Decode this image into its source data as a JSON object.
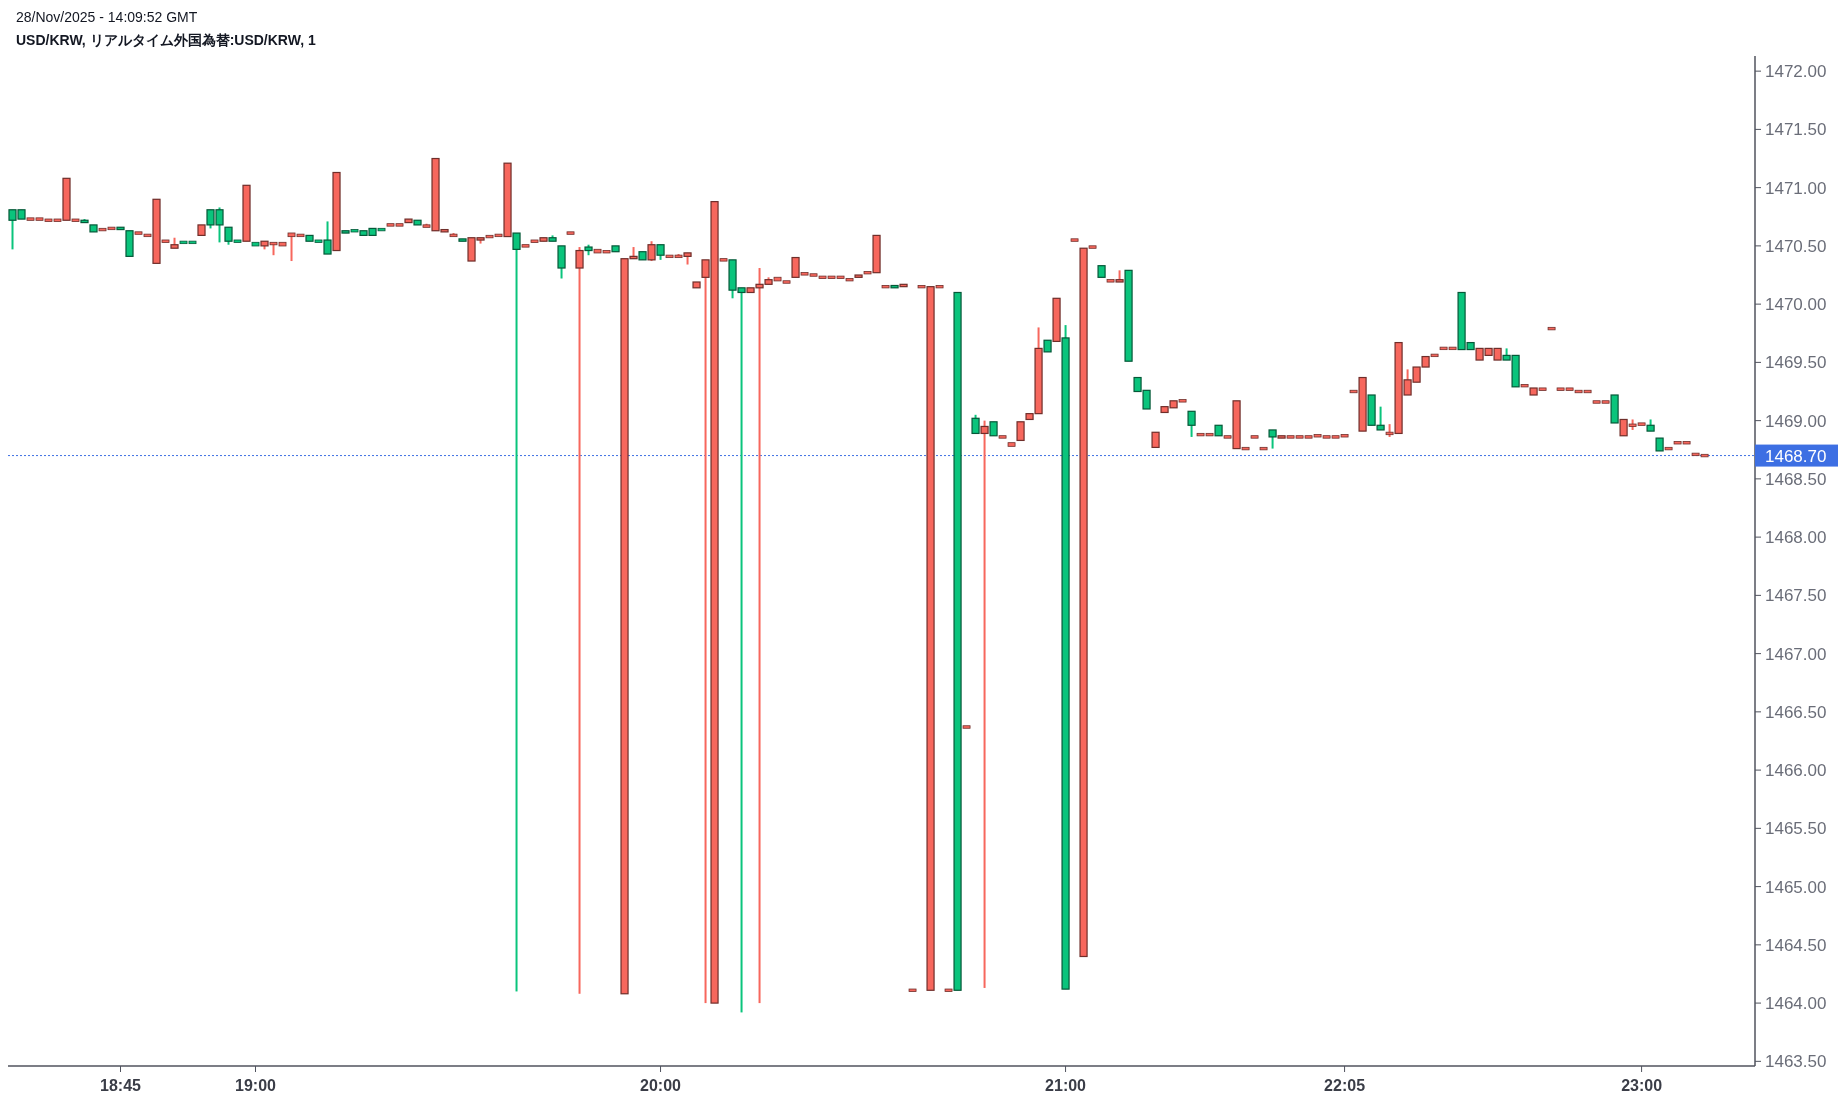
{
  "chart_data": {
    "type": "candlestick",
    "title": "USD/KRW, リアルタイム外国為替:USD/KRW, 1",
    "annotations": [
      "28/Nov/2025 - 14:09:52 GMT"
    ],
    "categories": [
      null,
      null,
      null,
      null,
      null,
      null,
      null,
      null,
      null,
      null,
      null,
      null,
      "18:45",
      null,
      null,
      null,
      null,
      null,
      null,
      null,
      null,
      null,
      null,
      null,
      null,
      null,
      null,
      "19:00",
      null,
      null,
      null,
      null,
      null,
      null,
      null,
      null,
      null,
      null,
      null,
      null,
      null,
      null,
      null,
      null,
      null,
      null,
      null,
      null,
      null,
      null,
      null,
      null,
      null,
      null,
      null,
      null,
      null,
      null,
      null,
      null,
      null,
      null,
      null,
      null,
      null,
      null,
      null,
      null,
      null,
      null,
      null,
      null,
      "20:00",
      null,
      null,
      null,
      null,
      null,
      null,
      null,
      null,
      null,
      null,
      null,
      null,
      null,
      null,
      null,
      null,
      null,
      null,
      null,
      null,
      null,
      null,
      null,
      null,
      null,
      null,
      null,
      null,
      null,
      null,
      null,
      null,
      null,
      null,
      null,
      null,
      null,
      null,
      null,
      null,
      null,
      null,
      null,
      null,
      "21:00",
      null,
      null,
      null,
      null,
      null,
      null,
      null,
      null,
      null,
      null,
      null,
      null,
      null,
      null,
      null,
      null,
      null,
      null,
      null,
      null,
      null,
      null,
      null,
      null,
      null,
      null,
      null,
      null,
      null,
      null,
      "22:05",
      null,
      null,
      null,
      null,
      null,
      null,
      null,
      null,
      null,
      null,
      null,
      null,
      null,
      null,
      null,
      null,
      null,
      null,
      null,
      null,
      null,
      null,
      null,
      null,
      null,
      null,
      null,
      null,
      null,
      null,
      null,
      null,
      "23:00",
      null,
      null,
      null,
      null,
      null,
      null,
      null
    ],
    "ohlc": [
      [
        1470.81,
        1470.81,
        1470.47,
        1470.72
      ],
      [
        1470.81,
        1470.81,
        1470.73,
        1470.73
      ],
      [
        1470.73,
        1470.73,
        1470.73,
        1470.73
      ],
      [
        1470.73,
        1470.73,
        1470.73,
        1470.73
      ],
      [
        1470.72,
        1470.72,
        1470.72,
        1470.72
      ],
      [
        1470.72,
        1470.72,
        1470.72,
        1470.72
      ],
      [
        1470.72,
        1471.08,
        1470.72,
        1471.08
      ],
      [
        1470.72,
        1470.72,
        1470.72,
        1470.72
      ],
      [
        1470.72,
        1470.73,
        1470.7,
        1470.7
      ],
      [
        1470.68,
        1470.68,
        1470.62,
        1470.62
      ],
      [
        1470.64,
        1470.64,
        1470.64,
        1470.64
      ],
      [
        1470.65,
        1470.65,
        1470.65,
        1470.65
      ],
      [
        1470.66,
        1470.66,
        1470.64,
        1470.64
      ],
      [
        1470.63,
        1470.63,
        1470.41,
        1470.41
      ],
      [
        1470.61,
        1470.61,
        1470.61,
        1470.61
      ],
      [
        1470.59,
        1470.59,
        1470.59,
        1470.59
      ],
      [
        1470.35,
        1470.9,
        1470.35,
        1470.9
      ],
      [
        1470.54,
        1470.54,
        1470.54,
        1470.54
      ],
      [
        1470.48,
        1470.57,
        1470.48,
        1470.51
      ],
      [
        1470.53,
        1470.53,
        1470.53,
        1470.53
      ],
      [
        1470.53,
        1470.53,
        1470.53,
        1470.53
      ],
      [
        1470.59,
        1470.68,
        1470.59,
        1470.68
      ],
      [
        1470.81,
        1470.81,
        1470.65,
        1470.68
      ],
      [
        1470.81,
        1470.83,
        1470.53,
        1470.68
      ],
      [
        1470.66,
        1470.66,
        1470.51,
        1470.54
      ],
      [
        1470.54,
        1470.54,
        1470.54,
        1470.54
      ],
      [
        1470.54,
        1471.02,
        1470.54,
        1471.02
      ],
      [
        1470.52,
        1470.52,
        1470.51,
        1470.51
      ],
      [
        1470.5,
        1470.54,
        1470.47,
        1470.54
      ],
      [
        1470.52,
        1470.52,
        1470.42,
        1470.52
      ],
      [
        1470.51,
        1470.52,
        1470.51,
        1470.52
      ],
      [
        1470.59,
        1470.6,
        1470.37,
        1470.6
      ],
      [
        1470.59,
        1470.59,
        1470.59,
        1470.59
      ],
      [
        1470.59,
        1470.59,
        1470.54,
        1470.54
      ],
      [
        1470.54,
        1470.54,
        1470.54,
        1470.54
      ],
      [
        1470.55,
        1470.71,
        1470.43,
        1470.43
      ],
      [
        1470.46,
        1471.13,
        1470.46,
        1471.13
      ],
      [
        1470.63,
        1470.63,
        1470.61,
        1470.61
      ],
      [
        1470.63,
        1470.64,
        1470.62,
        1470.63
      ],
      [
        1470.63,
        1470.63,
        1470.59,
        1470.59
      ],
      [
        1470.65,
        1470.65,
        1470.59,
        1470.59
      ],
      [
        1470.64,
        1470.64,
        1470.64,
        1470.64
      ],
      [
        1470.68,
        1470.68,
        1470.68,
        1470.68
      ],
      [
        1470.68,
        1470.68,
        1470.68,
        1470.68
      ],
      [
        1470.7,
        1470.73,
        1470.7,
        1470.73
      ],
      [
        1470.72,
        1470.72,
        1470.68,
        1470.68
      ],
      [
        1470.67,
        1470.69,
        1470.67,
        1470.67
      ],
      [
        1470.63,
        1471.25,
        1470.63,
        1471.25
      ],
      [
        1470.62,
        1470.64,
        1470.62,
        1470.64
      ],
      [
        1470.59,
        1470.61,
        1470.59,
        1470.59
      ],
      [
        1470.56,
        1470.56,
        1470.54,
        1470.54
      ],
      [
        1470.37,
        1470.57,
        1470.37,
        1470.57
      ],
      [
        1470.55,
        1470.57,
        1470.52,
        1470.57
      ],
      [
        1470.58,
        1470.58,
        1470.58,
        1470.58
      ],
      [
        1470.59,
        1470.59,
        1470.59,
        1470.59
      ],
      [
        1470.58,
        1471.21,
        1470.58,
        1471.21
      ],
      [
        1470.61,
        1470.61,
        1464.1,
        1470.47
      ],
      [
        1470.5,
        1470.5,
        1470.5,
        1470.5
      ],
      [
        1470.54,
        1470.54,
        1470.54,
        1470.54
      ],
      [
        1470.54,
        1470.57,
        1470.54,
        1470.57
      ],
      [
        1470.57,
        1470.59,
        1470.54,
        1470.54
      ],
      [
        1470.5,
        1470.5,
        1470.22,
        1470.31
      ],
      [
        1470.61,
        1470.61,
        1470.61,
        1470.61
      ],
      [
        1470.31,
        1470.49,
        1464.08,
        1470.46
      ],
      [
        1470.49,
        1470.51,
        1470.42,
        1470.46
      ],
      [
        1470.45,
        1470.46,
        1470.45,
        1470.46
      ],
      [
        1470.45,
        1470.45,
        1470.45,
        1470.45
      ],
      [
        1470.5,
        1470.5,
        1470.45,
        1470.45
      ],
      [
        1464.08,
        1470.39,
        1464.08,
        1470.39
      ],
      [
        1470.39,
        1470.49,
        1470.39,
        1470.41
      ],
      [
        1470.45,
        1470.45,
        1470.38,
        1470.38
      ],
      [
        1470.38,
        1470.54,
        1470.37,
        1470.51
      ],
      [
        1470.51,
        1470.51,
        1470.38,
        1470.42
      ],
      [
        1470.41,
        1470.41,
        1470.41,
        1470.41
      ],
      [
        1470.41,
        1470.43,
        1470.41,
        1470.41
      ],
      [
        1470.41,
        1470.44,
        1470.34,
        1470.44
      ],
      [
        1470.14,
        1470.19,
        1470.14,
        1470.19
      ],
      [
        1470.23,
        1470.38,
        1464.0,
        1470.38
      ],
      [
        1464.0,
        1470.88,
        1464.0,
        1470.88
      ],
      [
        1470.38,
        1470.38,
        1470.38,
        1470.38
      ],
      [
        1470.38,
        1470.38,
        1470.05,
        1470.12
      ],
      [
        1470.14,
        1470.14,
        1463.92,
        1470.1
      ],
      [
        1470.1,
        1470.14,
        1470.1,
        1470.14
      ],
      [
        1470.14,
        1470.31,
        1464.0,
        1470.17
      ],
      [
        1470.17,
        1470.23,
        1470.17,
        1470.21
      ],
      [
        1470.21,
        1470.22,
        1470.21,
        1470.22
      ],
      [
        1470.19,
        1470.19,
        1470.19,
        1470.19
      ],
      [
        1470.23,
        1470.4,
        1470.23,
        1470.4
      ],
      [
        1470.26,
        1470.26,
        1470.26,
        1470.26
      ],
      [
        1470.25,
        1470.25,
        1470.25,
        1470.25
      ],
      [
        1470.23,
        1470.23,
        1470.23,
        1470.23
      ],
      [
        1470.23,
        1470.23,
        1470.23,
        1470.23
      ],
      [
        1470.23,
        1470.23,
        1470.23,
        1470.23
      ],
      [
        1470.21,
        1470.21,
        1470.21,
        1470.21
      ],
      [
        1470.23,
        1470.25,
        1470.23,
        1470.25
      ],
      [
        1470.27,
        1470.27,
        1470.27,
        1470.27
      ],
      [
        1470.27,
        1470.59,
        1470.27,
        1470.59
      ],
      [
        1470.15,
        1470.15,
        1470.15,
        1470.15
      ],
      [
        1470.16,
        1470.16,
        1470.14,
        1470.14
      ],
      [
        1470.15,
        1470.17,
        1470.15,
        1470.17
      ],
      [
        1464.11,
        1464.11,
        1464.11,
        1464.11
      ],
      [
        1470.15,
        1470.15,
        1470.15,
        1470.15
      ],
      [
        1464.11,
        1470.15,
        1464.11,
        1470.15
      ],
      [
        1470.15,
        1470.15,
        1470.15,
        1470.15
      ],
      [
        1464.11,
        1464.11,
        1464.11,
        1464.11
      ],
      [
        1470.1,
        1470.1,
        1464.11,
        1464.11
      ],
      [
        1466.37,
        1466.37,
        1466.37,
        1466.37
      ],
      [
        1469.02,
        1469.05,
        1468.89,
        1468.89
      ],
      [
        1468.89,
        1469.0,
        1464.13,
        1468.95
      ],
      [
        1468.99,
        1468.99,
        1468.87,
        1468.87
      ],
      [
        1468.86,
        1468.86,
        1468.86,
        1468.86
      ],
      [
        1468.79,
        1468.8,
        1468.79,
        1468.8
      ],
      [
        1468.83,
        1468.99,
        1468.83,
        1468.99
      ],
      [
        1469.01,
        1469.06,
        1469.01,
        1469.06
      ],
      [
        1469.06,
        1469.8,
        1469.06,
        1469.62
      ],
      [
        1469.69,
        1469.69,
        1469.59,
        1469.59
      ],
      [
        1469.68,
        1470.05,
        1469.68,
        1470.05
      ],
      [
        1469.71,
        1469.82,
        1464.12,
        1464.12
      ],
      [
        1470.55,
        1470.55,
        1470.55,
        1470.55
      ],
      [
        1464.4,
        1470.48,
        1464.4,
        1470.48
      ],
      [
        1470.49,
        1470.49,
        1470.49,
        1470.49
      ],
      [
        1470.33,
        1470.33,
        1470.23,
        1470.23
      ],
      [
        1470.2,
        1470.2,
        1470.2,
        1470.2
      ],
      [
        1470.19,
        1470.29,
        1470.19,
        1470.21
      ],
      [
        1470.29,
        1470.29,
        1469.51,
        1469.51
      ],
      [
        1469.37,
        1469.37,
        1469.25,
        1469.25
      ],
      [
        1469.26,
        1469.26,
        1469.1,
        1469.1
      ],
      [
        1468.77,
        1468.9,
        1468.77,
        1468.9
      ],
      [
        1469.07,
        1469.12,
        1469.07,
        1469.12
      ],
      [
        1469.11,
        1469.17,
        1469.11,
        1469.17
      ],
      [
        1469.17,
        1469.17,
        1469.17,
        1469.17
      ],
      [
        1469.08,
        1469.08,
        1468.86,
        1468.96
      ],
      [
        1468.88,
        1468.88,
        1468.88,
        1468.88
      ],
      [
        1468.88,
        1468.88,
        1468.88,
        1468.88
      ],
      [
        1468.96,
        1468.96,
        1468.87,
        1468.87
      ],
      [
        1468.86,
        1468.86,
        1468.86,
        1468.86
      ],
      [
        1468.76,
        1469.17,
        1468.76,
        1469.17
      ],
      [
        1468.76,
        1468.76,
        1468.76,
        1468.76
      ],
      [
        1468.86,
        1468.86,
        1468.86,
        1468.86
      ],
      [
        1468.76,
        1468.76,
        1468.76,
        1468.76
      ],
      [
        1468.92,
        1468.92,
        1468.76,
        1468.86
      ],
      [
        1468.85,
        1468.87,
        1468.85,
        1468.87
      ],
      [
        1468.86,
        1468.86,
        1468.86,
        1468.86
      ],
      [
        1468.86,
        1468.86,
        1468.86,
        1468.86
      ],
      [
        1468.86,
        1468.86,
        1468.86,
        1468.86
      ],
      [
        1468.87,
        1468.87,
        1468.87,
        1468.87
      ],
      [
        1468.86,
        1468.86,
        1468.86,
        1468.86
      ],
      [
        1468.86,
        1468.86,
        1468.86,
        1468.86
      ],
      [
        1468.87,
        1468.87,
        1468.87,
        1468.87
      ],
      [
        1469.25,
        1469.25,
        1469.25,
        1469.25
      ],
      [
        1468.91,
        1469.37,
        1468.91,
        1469.37
      ],
      [
        1469.22,
        1469.22,
        1468.96,
        1468.96
      ],
      [
        1468.96,
        1469.12,
        1468.92,
        1468.92
      ],
      [
        1468.89,
        1468.97,
        1468.86,
        1468.89
      ],
      [
        1468.89,
        1469.67,
        1468.89,
        1469.67
      ],
      [
        1469.22,
        1469.44,
        1469.22,
        1469.35
      ],
      [
        1469.33,
        1469.46,
        1469.33,
        1469.46
      ],
      [
        1469.46,
        1469.55,
        1469.46,
        1469.55
      ],
      [
        1469.56,
        1469.56,
        1469.56,
        1469.56
      ],
      [
        1469.62,
        1469.62,
        1469.62,
        1469.62
      ],
      [
        1469.62,
        1469.62,
        1469.62,
        1469.62
      ],
      [
        1470.1,
        1470.1,
        1469.61,
        1469.61
      ],
      [
        1469.67,
        1469.67,
        1469.61,
        1469.61
      ],
      [
        1469.52,
        1469.62,
        1469.52,
        1469.62
      ],
      [
        1469.56,
        1469.62,
        1469.56,
        1469.62
      ],
      [
        1469.52,
        1469.62,
        1469.52,
        1469.62
      ],
      [
        1469.56,
        1469.62,
        1469.52,
        1469.52
      ],
      [
        1469.56,
        1469.56,
        1469.29,
        1469.29
      ],
      [
        1469.3,
        1469.3,
        1469.3,
        1469.3
      ],
      [
        1469.22,
        1469.28,
        1469.22,
        1469.28
      ],
      [
        1469.27,
        1469.27,
        1469.27,
        1469.27
      ],
      [
        1469.79,
        1469.79,
        1469.79,
        1469.79
      ],
      [
        1469.27,
        1469.27,
        1469.27,
        1469.27
      ],
      [
        1469.27,
        1469.27,
        1469.27,
        1469.27
      ],
      [
        1469.25,
        1469.25,
        1469.25,
        1469.25
      ],
      [
        1469.25,
        1469.25,
        1469.25,
        1469.25
      ],
      [
        1469.16,
        1469.16,
        1469.16,
        1469.16
      ],
      [
        1469.16,
        1469.16,
        1469.16,
        1469.16
      ],
      [
        1469.22,
        1469.22,
        1468.98,
        1468.98
      ],
      [
        1468.87,
        1469.01,
        1468.87,
        1469.01
      ],
      [
        1468.96,
        1469.01,
        1468.92,
        1468.96
      ],
      [
        1468.97,
        1468.97,
        1468.97,
        1468.97
      ],
      [
        1468.96,
        1469.01,
        1468.91,
        1468.91
      ],
      [
        1468.85,
        1468.85,
        1468.74,
        1468.74
      ],
      [
        1468.76,
        1468.76,
        1468.76,
        1468.76
      ],
      [
        1468.81,
        1468.81,
        1468.81,
        1468.81
      ],
      [
        1468.81,
        1468.81,
        1468.81,
        1468.81
      ],
      [
        1468.71,
        1468.71,
        1468.71,
        1468.71
      ],
      [
        1468.7,
        1468.7,
        1468.7,
        1468.7
      ]
    ],
    "colors": [
      "#0ac47c",
      "#0ac47c",
      "#f7675d",
      "#f7675d",
      "#f7675d",
      "#f7675d",
      "#f7675d",
      "#f7675d",
      "#0ac47c",
      "#0ac47c",
      "#f7675d",
      "#f7675d",
      "#0ac47c",
      "#0ac47c",
      "#f7675d",
      "#f7675d",
      "#f7675d",
      "#f7675d",
      "#f7675d",
      "#0ac47c",
      "#0ac47c",
      "#f7675d",
      "#0ac47c",
      "#0ac47c",
      "#0ac47c",
      "#0ac47c",
      "#f7675d",
      "#0ac47c",
      "#f7675d",
      "#f7675d",
      "#f7675d",
      "#f7675d",
      "#f7675d",
      "#0ac47c",
      "#0ac47c",
      "#0ac47c",
      "#f7675d",
      "#0ac47c",
      "#0ac47c",
      "#0ac47c",
      "#0ac47c",
      "#0ac47c",
      "#f7675d",
      "#f7675d",
      "#f7675d",
      "#0ac47c",
      "#f7675d",
      "#f7675d",
      "#f7675d",
      "#f7675d",
      "#0ac47c",
      "#f7675d",
      "#f7675d",
      "#f7675d",
      "#f7675d",
      "#f7675d",
      "#0ac47c",
      "#f7675d",
      "#f7675d",
      "#f7675d",
      "#0ac47c",
      "#0ac47c",
      "#f7675d",
      "#f7675d",
      "#0ac47c",
      "#f7675d",
      "#f7675d",
      "#0ac47c",
      "#f7675d",
      "#f7675d",
      "#0ac47c",
      "#f7675d",
      "#0ac47c",
      "#f7675d",
      "#f7675d",
      "#f7675d",
      "#f7675d",
      "#f7675d",
      "#f7675d",
      "#f7675d",
      "#0ac47c",
      "#0ac47c",
      "#f7675d",
      "#f7675d",
      "#f7675d",
      "#f7675d",
      "#f7675d",
      "#f7675d",
      "#f7675d",
      "#f7675d",
      "#f7675d",
      "#f7675d",
      "#f7675d",
      "#f7675d",
      "#f7675d",
      "#f7675d",
      "#f7675d",
      "#f7675d",
      "#0ac47c",
      "#f7675d",
      "#f7675d",
      "#f7675d",
      "#f7675d",
      "#f7675d",
      "#f7675d",
      "#0ac47c",
      "#f7675d",
      "#0ac47c",
      "#f7675d",
      "#0ac47c",
      "#f7675d",
      "#f7675d",
      "#f7675d",
      "#f7675d",
      "#f7675d",
      "#0ac47c",
      "#f7675d",
      "#0ac47c",
      "#f7675d",
      "#f7675d",
      "#f7675d",
      "#0ac47c",
      "#f7675d",
      "#f7675d",
      "#0ac47c",
      "#0ac47c",
      "#0ac47c",
      "#f7675d",
      "#f7675d",
      "#f7675d",
      "#f7675d",
      "#0ac47c",
      "#f7675d",
      "#f7675d",
      "#0ac47c",
      "#f7675d",
      "#f7675d",
      "#f7675d",
      "#f7675d",
      "#f7675d",
      "#0ac47c",
      "#f7675d",
      "#f7675d",
      "#f7675d",
      "#f7675d",
      "#f7675d",
      "#f7675d",
      "#f7675d",
      "#f7675d",
      "#f7675d",
      "#f7675d",
      "#0ac47c",
      "#0ac47c",
      "#f7675d",
      "#f7675d",
      "#f7675d",
      "#f7675d",
      "#f7675d",
      "#f7675d",
      "#f7675d",
      "#f7675d",
      "#0ac47c",
      "#0ac47c",
      "#f7675d",
      "#f7675d",
      "#f7675d",
      "#0ac47c",
      "#0ac47c",
      "#f7675d",
      "#f7675d",
      "#f7675d",
      "#f7675d",
      "#f7675d",
      "#f7675d",
      "#f7675d",
      "#f7675d",
      "#f7675d",
      "#f7675d",
      "#0ac47c",
      "#f7675d",
      "#f7675d",
      "#f7675d",
      "#0ac47c",
      "#0ac47c",
      "#f7675d",
      "#f7675d",
      "#f7675d",
      "#f7675d",
      "#f7675d"
    ],
    "ylim": [
      1463.46,
      1472.13
    ],
    "yticks": [
      {
        "value": 1463.5,
        "label": "1463.50"
      },
      {
        "value": 1464,
        "label": "1464.00"
      },
      {
        "value": 1464.5,
        "label": "1464.50"
      },
      {
        "value": 1465,
        "label": "1465.00"
      },
      {
        "value": 1465.5,
        "label": "1465.50"
      },
      {
        "value": 1466,
        "label": "1466.00"
      },
      {
        "value": 1466.5,
        "label": "1466.50"
      },
      {
        "value": 1467,
        "label": "1467.00"
      },
      {
        "value": 1467.5,
        "label": "1467.50"
      },
      {
        "value": 1468,
        "label": "1468.00"
      },
      {
        "value": 1468.5,
        "label": "1468.50"
      },
      {
        "value": 1469,
        "label": "1469.00"
      },
      {
        "value": 1469.5,
        "label": "1469.50"
      },
      {
        "value": 1470,
        "label": "1470.00"
      },
      {
        "value": 1470.5,
        "label": "1470.50"
      },
      {
        "value": 1471,
        "label": "1471.00"
      },
      {
        "value": 1471.5,
        "label": "1471.50"
      },
      {
        "value": 1472,
        "label": "1472.00"
      }
    ],
    "ref_lines": [
      {
        "axis": "y",
        "value": 1468.7,
        "label": "1468.70",
        "color": "#3d6fe3",
        "line_style": "dotted"
      }
    ]
  }
}
